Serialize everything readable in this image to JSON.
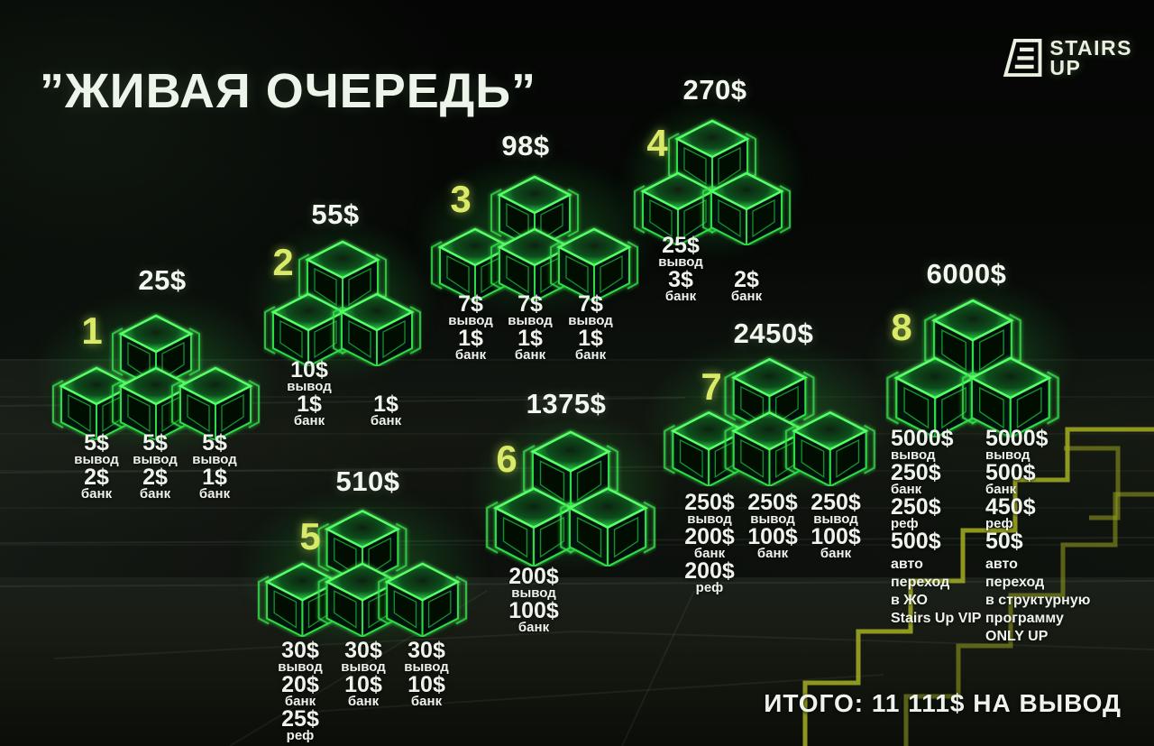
{
  "title": "”ЖИВАЯ ОЧЕРЕДЬ”",
  "logo": {
    "line1": "STAIRS",
    "line2": "UP"
  },
  "total": "ИТОГО: 11 111$ НА ВЫВОД",
  "colors": {
    "cube_green": "#3ef04e",
    "number_yellow": "#dbe968",
    "stair_olive": "#a0ab22",
    "text_white": "#eef3eb"
  },
  "levels": [
    {
      "number": "1",
      "price": "25$",
      "payouts": [
        [
          {
            "amount": "5$",
            "label": "вывод"
          },
          {
            "amount": "2$",
            "label": "банк"
          }
        ],
        [
          {
            "amount": "5$",
            "label": "вывод"
          },
          {
            "amount": "2$",
            "label": "банк"
          }
        ],
        [
          {
            "amount": "5$",
            "label": "вывод"
          },
          {
            "amount": "1$",
            "label": "банк"
          }
        ]
      ]
    },
    {
      "number": "2",
      "price": "55$",
      "payouts": [
        [
          {
            "amount": "10$",
            "label": "вывод"
          },
          {
            "amount": "1$",
            "label": "банк"
          }
        ],
        [
          {
            "amount": "1$",
            "label": "банк"
          }
        ]
      ]
    },
    {
      "number": "3",
      "price": "98$",
      "payouts": [
        [
          {
            "amount": "7$",
            "label": "вывод"
          },
          {
            "amount": "1$",
            "label": "банк"
          }
        ],
        [
          {
            "amount": "7$",
            "label": "вывод"
          },
          {
            "amount": "1$",
            "label": "банк"
          }
        ],
        [
          {
            "amount": "7$",
            "label": "вывод"
          },
          {
            "amount": "1$",
            "label": "банк"
          }
        ]
      ]
    },
    {
      "number": "4",
      "price": "270$",
      "payouts": [
        [
          {
            "amount": "25$",
            "label": "вывод"
          },
          {
            "amount": "3$",
            "label": "банк"
          }
        ],
        [
          {
            "amount": "2$",
            "label": "банк"
          }
        ]
      ]
    },
    {
      "number": "5",
      "price": "510$",
      "payouts": [
        [
          {
            "amount": "30$",
            "label": "вывод"
          },
          {
            "amount": "20$",
            "label": "банк"
          },
          {
            "amount": "25$",
            "label": "реф"
          }
        ],
        [
          {
            "amount": "30$",
            "label": "вывод"
          },
          {
            "amount": "10$",
            "label": "банк"
          }
        ],
        [
          {
            "amount": "30$",
            "label": "вывод"
          },
          {
            "amount": "10$",
            "label": "банк"
          }
        ]
      ]
    },
    {
      "number": "6",
      "price": "1375$",
      "payouts": [
        [
          {
            "amount": "200$",
            "label": "вывод"
          },
          {
            "amount": "100$",
            "label": "банк"
          }
        ]
      ]
    },
    {
      "number": "7",
      "price": "2450$",
      "payouts": [
        [
          {
            "amount": "250$",
            "label": "вывод"
          },
          {
            "amount": "200$",
            "label": "банк"
          },
          {
            "amount": "200$",
            "label": "реф"
          }
        ],
        [
          {
            "amount": "250$",
            "label": "вывод"
          },
          {
            "amount": "100$",
            "label": "банк"
          }
        ],
        [
          {
            "amount": "250$",
            "label": "вывод"
          },
          {
            "amount": "100$",
            "label": "банк"
          }
        ]
      ]
    },
    {
      "number": "8",
      "price": "6000$",
      "payouts": [
        [
          {
            "amount": "5000$",
            "label": "вывод"
          },
          {
            "amount": "250$",
            "label": "банк"
          },
          {
            "amount": "250$",
            "label": "реф"
          },
          {
            "amount": "500$",
            "label": "авто\nпереход\nв ЖО\nStairs Up VIP"
          }
        ],
        [
          {
            "amount": "5000$",
            "label": "вывод"
          },
          {
            "amount": "500$",
            "label": "банк"
          },
          {
            "amount": "450$",
            "label": "реф"
          },
          {
            "amount": "50$",
            "label": "авто\nпереход\nв структурную\nпрограмму\nONLY UP"
          }
        ]
      ]
    }
  ]
}
